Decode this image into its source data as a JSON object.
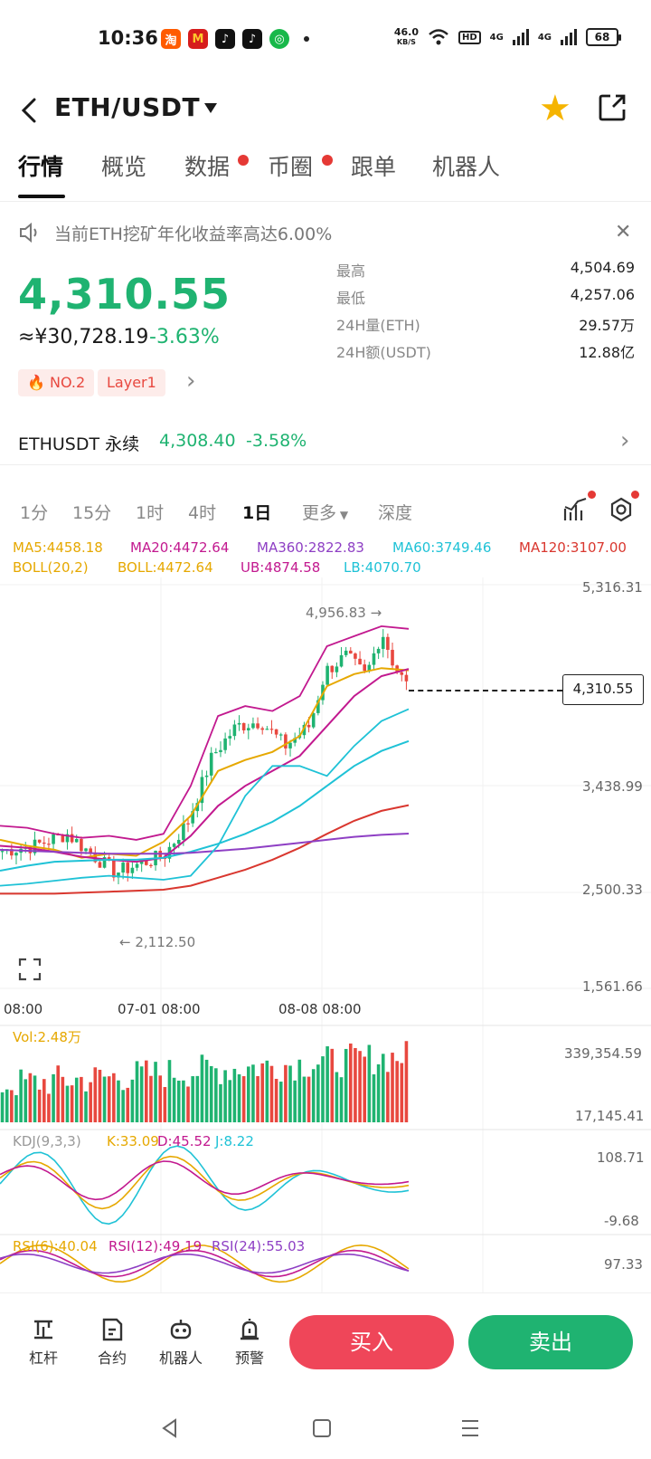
{
  "status_bar": {
    "time": "10:36",
    "net_speed_value": "46.0",
    "net_speed_unit": "KB/S",
    "hd": "HD",
    "sim1": "4G",
    "sim2": "4G",
    "battery": "68",
    "app_icons": [
      "taobao-icon",
      "mcdonalds-icon",
      "tiktok-lite-icon",
      "tiktok-icon",
      "wechat-pay-icon"
    ]
  },
  "header": {
    "title": "ETH/USDT"
  },
  "tabs": [
    {
      "label": "行情",
      "active": true
    },
    {
      "label": "概览"
    },
    {
      "label": "数据",
      "dot": true
    },
    {
      "label": "币圈",
      "dot": true
    },
    {
      "label": "跟单"
    },
    {
      "label": "机器人"
    }
  ],
  "notice": {
    "text": "当前ETH挖矿年化收益率高达6.00%"
  },
  "price": {
    "last": "4,310.55",
    "cny": "≈¥30,728.19",
    "change": "-3.63%",
    "rank_tag": "NO.2",
    "sector_tag": "Layer1"
  },
  "stats": [
    {
      "label": "最高",
      "value": "4,504.69"
    },
    {
      "label": "最低",
      "value": "4,257.06"
    },
    {
      "label": "24H量(ETH)",
      "value": "29.57万"
    },
    {
      "label": "24H额(USDT)",
      "value": "12.88亿"
    }
  ],
  "perpetual": {
    "name": "ETHUSDT 永续",
    "price": "4,308.40",
    "change": "-3.58%"
  },
  "intervals": [
    {
      "label": "1分"
    },
    {
      "label": "15分"
    },
    {
      "label": "1时"
    },
    {
      "label": "4时"
    },
    {
      "label": "1日",
      "active": true
    },
    {
      "label": "更多"
    },
    {
      "label": "深度"
    }
  ],
  "indicators": {
    "ma5": "MA5:4458.18",
    "ma20": "MA20:4472.64",
    "ma360": "MA360:2822.83",
    "ma60": "MA60:3749.46",
    "ma120": "MA120:3107.00",
    "boll": "BOLL(20,2)",
    "boll_mid": "BOLL:4472.64",
    "boll_ub": "UB:4874.58",
    "boll_lb": "LB:4070.70"
  },
  "colors": {
    "up": "#1fb371",
    "down": "#e8483f",
    "ma5": "#e6a800",
    "ma20": "#c2198f",
    "ma360": "#8e3fc4",
    "ma60": "#1fc2d6",
    "ma120": "#d9372f"
  },
  "chart_data": {
    "type": "candlestick",
    "price_axis": [
      "5,316.31",
      "3,438.99",
      "2,500.33",
      "1,561.66"
    ],
    "time_axis": [
      "08:00",
      "07-01 08:00",
      "08-08 08:00"
    ],
    "high_annotation": "4,956.83",
    "low_annotation": "2,112.50",
    "current_price": "4,310.55",
    "volume": {
      "label": "Vol:2.48万",
      "axis": [
        "339,354.59",
        "17,145.41"
      ]
    },
    "kdj": {
      "label": "KDJ(9,3,3)",
      "k": "K:33.09",
      "d": "D:45.52",
      "j": "J:8.22",
      "axis": [
        "108.71",
        "-9.68"
      ]
    },
    "rsi": {
      "rsi6": "RSI(6):40.04",
      "rsi12": "RSI(12):49.19",
      "rsi24": "RSI(24):55.03",
      "axis": [
        "97.33"
      ]
    },
    "series": [
      {
        "name": "MA5",
        "approx_values": [
          2760,
          2700,
          2660,
          2580,
          2620,
          2600,
          2740,
          3000,
          3450,
          3560,
          3640,
          3800,
          4300,
          4420,
          4480,
          4458
        ]
      },
      {
        "name": "MA20",
        "approx_values": [
          2700,
          2680,
          2640,
          2590,
          2560,
          2540,
          2580,
          2800,
          3100,
          3300,
          3450,
          3600,
          3900,
          4200,
          4400,
          4472
        ]
      },
      {
        "name": "MA60",
        "approx_values": [
          2450,
          2500,
          2540,
          2550,
          2560,
          2560,
          2580,
          2640,
          2720,
          2820,
          2940,
          3100,
          3300,
          3500,
          3650,
          3749
        ]
      },
      {
        "name": "MA120",
        "approx_values": [
          2220,
          2220,
          2220,
          2230,
          2240,
          2250,
          2260,
          2300,
          2380,
          2460,
          2560,
          2680,
          2820,
          2950,
          3050,
          3107
        ]
      },
      {
        "name": "MA360",
        "approx_values": [
          2660,
          2650,
          2640,
          2630,
          2620,
          2620,
          2620,
          2630,
          2650,
          2670,
          2700,
          2730,
          2760,
          2790,
          2810,
          2822
        ]
      }
    ]
  },
  "bottom_nav": [
    {
      "label": "杠杆"
    },
    {
      "label": "合约"
    },
    {
      "label": "机器人"
    },
    {
      "label": "预警"
    }
  ],
  "actions": {
    "buy": "买入",
    "sell": "卖出"
  }
}
